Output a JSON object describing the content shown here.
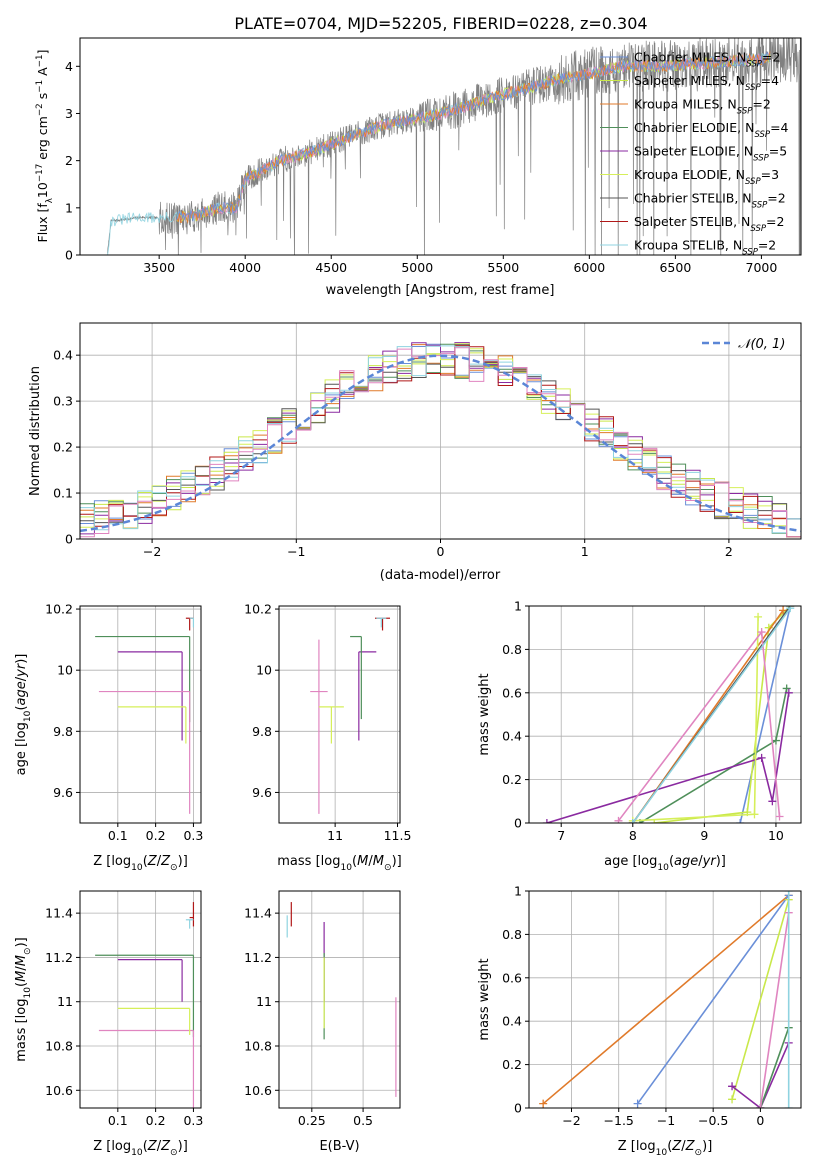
{
  "figure": {
    "title": "PLATE=0704, MJD=52205, FIBERID=0228, z=0.304"
  },
  "colors": {
    "chabrier_miles": "#6a8fd8",
    "salpeter_miles": "#c9e84a",
    "kroupa_miles": "#e07a2a",
    "chabrier_elodie": "#4f8f5a",
    "salpeter_elodie": "#8a2aa0",
    "kroupa_elodie": "#d6ef5a",
    "chabrier_stelib": "#555555",
    "salpeter_stelib": "#b01818",
    "kroupa_stelib": "#8fd3e0",
    "pink": "#e085c0",
    "data_grey": "#808080",
    "normal_curve": "#5b86d6"
  },
  "chart_data": [
    {
      "id": "spectrum",
      "type": "line",
      "title": "PLATE=0704, MJD=52205, FIBERID=0228, z=0.304",
      "xlabel": "wavelength [Angstrom, rest frame]",
      "ylabel": "Flux [fλ 10⁻¹⁷ erg cm⁻² s⁻¹ A⁻¹]",
      "xlim": [
        3040,
        7230
      ],
      "ylim": [
        0,
        4.6
      ],
      "xticks": [
        3500,
        4000,
        4500,
        5000,
        5500,
        6000,
        6500,
        7000
      ],
      "yticks": [
        0,
        1,
        2,
        3,
        4
      ],
      "legend_position": "top-right",
      "legend": [
        {
          "label": "Chabrier MILES, N",
          "sub": "SSP",
          "suffix": "=2",
          "color_key": "chabrier_miles"
        },
        {
          "label": "Salpeter MILES, N",
          "sub": "SSP",
          "suffix": "=4",
          "color_key": "salpeter_miles"
        },
        {
          "label": "Kroupa MILES, N",
          "sub": "SSP",
          "suffix": "=2",
          "color_key": "kroupa_miles"
        },
        {
          "label": "Chabrier ELODIE, N",
          "sub": "SSP",
          "suffix": "=4",
          "color_key": "chabrier_elodie"
        },
        {
          "label": "Salpeter ELODIE, N",
          "sub": "SSP",
          "suffix": "=5",
          "color_key": "salpeter_elodie"
        },
        {
          "label": "Kroupa ELODIE, N",
          "sub": "SSP",
          "suffix": "=3",
          "color_key": "kroupa_elodie"
        },
        {
          "label": "Chabrier STELIB, N",
          "sub": "SSP",
          "suffix": "=2",
          "color_key": "chabrier_stelib"
        },
        {
          "label": "Salpeter STELIB, N",
          "sub": "SSP",
          "suffix": "=2",
          "color_key": "salpeter_stelib"
        },
        {
          "label": "Kroupa STELIB, N",
          "sub": "SSP",
          "suffix": "=2",
          "color_key": "kroupa_stelib"
        }
      ],
      "continuum": [
        [
          3200,
          0.05
        ],
        [
          3220,
          0.72
        ],
        [
          3400,
          0.8
        ],
        [
          3500,
          0.78
        ],
        [
          3700,
          0.82
        ],
        [
          3850,
          1.0
        ],
        [
          3950,
          1.0
        ],
        [
          4000,
          1.6
        ],
        [
          4200,
          2.0
        ],
        [
          4400,
          2.2
        ],
        [
          4600,
          2.5
        ],
        [
          4800,
          2.75
        ],
        [
          5000,
          2.9
        ],
        [
          5200,
          3.05
        ],
        [
          5400,
          3.3
        ],
        [
          5600,
          3.5
        ],
        [
          5800,
          3.7
        ],
        [
          6000,
          3.85
        ],
        [
          6200,
          4.0
        ],
        [
          6400,
          4.0
        ],
        [
          6600,
          4.05
        ],
        [
          6800,
          4.1
        ],
        [
          7000,
          4.15
        ],
        [
          7050,
          4.2
        ]
      ]
    },
    {
      "id": "residuals",
      "type": "step",
      "xlabel": "(data-model)/error",
      "ylabel": "Normed distribution",
      "xlim": [
        -2.5,
        2.5
      ],
      "ylim": [
        0,
        0.47
      ],
      "xticks": [
        -2,
        -1,
        0,
        1,
        2
      ],
      "yticks": [
        0.0,
        0.1,
        0.2,
        0.3,
        0.4
      ],
      "legend_position": "top-right",
      "legend": [
        {
          "label": "𝒩(0, 1)",
          "color_key": "normal_curve"
        }
      ],
      "bin_width": 0.1
    },
    {
      "id": "age_vs_Z",
      "type": "errorbar",
      "xlabel": "Z [log10(Z/Z⊙)]",
      "ylabel": "age  [log10(age/yr)]",
      "xlim": [
        0.0,
        0.32
      ],
      "ylim": [
        9.5,
        10.21
      ],
      "xticks": [
        0.1,
        0.2,
        0.3
      ],
      "yticks": [
        9.6,
        9.8,
        10.0,
        10.2
      ],
      "points": [
        {
          "x": 0.27,
          "y": 10.06,
          "xerr": [
            0.17,
            0.0
          ],
          "yerr": [
            0.29,
            0.0
          ],
          "color_key": "salpeter_elodie"
        },
        {
          "x": 0.29,
          "y": 10.11,
          "xerr": [
            0.25,
            0.0
          ],
          "yerr": [
            0.28,
            0.0
          ],
          "color_key": "chabrier_elodie"
        },
        {
          "x": 0.29,
          "y": 9.93,
          "xerr": [
            0.24,
            0.0
          ],
          "yerr": [
            0.4,
            0.0
          ],
          "color_key": "pink"
        },
        {
          "x": 0.28,
          "y": 9.88,
          "xerr": [
            0.18,
            0.0
          ],
          "yerr": [
            0.12,
            0.0
          ],
          "color_key": "kroupa_elodie"
        },
        {
          "x": 0.29,
          "y": 10.17,
          "xerr": [
            0.01,
            0.01
          ],
          "yerr": [
            0.04,
            0.0
          ],
          "color_key": "salpeter_stelib"
        },
        {
          "x": 0.3,
          "y": 10.17,
          "xerr": [
            0.01,
            0.0
          ],
          "yerr": [
            0.03,
            0.0
          ],
          "color_key": "kroupa_stelib"
        }
      ]
    },
    {
      "id": "age_vs_mass",
      "type": "errorbar",
      "xlabel": "mass [log10(M/M⊙)]",
      "ylabel": "",
      "xlim": [
        10.55,
        11.52
      ],
      "ylim": [
        9.5,
        10.21
      ],
      "xticks": [
        11.0,
        11.5
      ],
      "yticks": [
        9.6,
        9.8,
        10.0,
        10.2
      ],
      "points": [
        {
          "x": 11.19,
          "y": 10.06,
          "xerr": [
            0.0,
            0.14
          ],
          "yerr": [
            0.29,
            0.0
          ],
          "color_key": "salpeter_elodie"
        },
        {
          "x": 11.21,
          "y": 10.11,
          "xerr": [
            0.09,
            0.0
          ],
          "yerr": [
            0.27,
            0.0
          ],
          "color_key": "chabrier_elodie"
        },
        {
          "x": 10.87,
          "y": 9.93,
          "xerr": [
            0.07,
            0.07
          ],
          "yerr": [
            0.4,
            0.17
          ],
          "color_key": "pink"
        },
        {
          "x": 10.97,
          "y": 9.88,
          "xerr": [
            0.1,
            0.1
          ],
          "yerr": [
            0.12,
            0.0
          ],
          "color_key": "kroupa_elodie"
        },
        {
          "x": 11.38,
          "y": 10.17,
          "xerr": [
            0.06,
            0.06
          ],
          "yerr": [
            0.04,
            0.0
          ],
          "color_key": "salpeter_stelib"
        },
        {
          "x": 11.37,
          "y": 10.17,
          "xerr": [
            0.04,
            0.04
          ],
          "yerr": [
            0.03,
            0.0
          ],
          "color_key": "kroupa_stelib"
        }
      ]
    },
    {
      "id": "weight_vs_age",
      "type": "line",
      "xlabel": "age  [log10(age/yr)]",
      "ylabel": "mass weight",
      "xlim": [
        6.55,
        10.35
      ],
      "ylim": [
        0,
        1
      ],
      "xticks": [
        7,
        8,
        9,
        10
      ],
      "yticks": [
        0.0,
        0.2,
        0.4,
        0.6,
        0.8,
        1.0
      ],
      "series": [
        {
          "color_key": "chabrier_miles",
          "points": [
            [
              9.5,
              0.0
            ],
            [
              10.2,
              1.0
            ]
          ]
        },
        {
          "color_key": "salpeter_miles",
          "points": [
            [
              8.3,
              0.0
            ],
            [
              9.6,
              0.05
            ],
            [
              9.9,
              0.9
            ],
            [
              10.2,
              1.0
            ]
          ]
        },
        {
          "color_key": "kroupa_miles",
          "points": [
            [
              8.0,
              0.0
            ],
            [
              10.1,
              0.98
            ]
          ]
        },
        {
          "color_key": "chabrier_elodie",
          "points": [
            [
              8.1,
              0.0
            ],
            [
              10.0,
              0.38
            ],
            [
              10.15,
              0.62
            ]
          ]
        },
        {
          "color_key": "salpeter_elodie",
          "points": [
            [
              6.8,
              0.0
            ],
            [
              9.8,
              0.3
            ],
            [
              9.95,
              0.1
            ],
            [
              10.18,
              0.6
            ]
          ]
        },
        {
          "color_key": "kroupa_elodie",
          "points": [
            [
              8.0,
              0.01
            ],
            [
              9.7,
              0.04
            ],
            [
              9.75,
              0.95
            ]
          ]
        },
        {
          "color_key": "chabrier_stelib",
          "points": [
            [
              8.0,
              0.0
            ],
            [
              10.2,
              1.0
            ]
          ]
        },
        {
          "color_key": "pink",
          "points": [
            [
              7.8,
              0.01
            ],
            [
              9.8,
              0.88
            ],
            [
              10.05,
              0.03
            ]
          ]
        },
        {
          "color_key": "kroupa_stelib",
          "points": [
            [
              8.0,
              0.0
            ],
            [
              10.2,
              0.99
            ]
          ]
        }
      ]
    },
    {
      "id": "mass_vs_Z",
      "type": "errorbar",
      "xlabel": "Z [log10(Z/Z⊙)]",
      "ylabel": "mass [log10(M/M⊙)]",
      "xlim": [
        0.0,
        0.32
      ],
      "ylim": [
        10.52,
        11.5
      ],
      "xticks": [
        0.1,
        0.2,
        0.3
      ],
      "yticks": [
        10.6,
        10.8,
        11.0,
        11.2,
        11.4
      ],
      "points": [
        {
          "x": 0.27,
          "y": 11.19,
          "xerr": [
            0.17,
            0.0
          ],
          "yerr": [
            0.19,
            0.0
          ],
          "color_key": "salpeter_elodie"
        },
        {
          "x": 0.3,
          "y": 11.21,
          "xerr": [
            0.26,
            0.0
          ],
          "yerr": [
            0.37,
            0.0
          ],
          "color_key": "chabrier_elodie"
        },
        {
          "x": 0.3,
          "y": 10.87,
          "xerr": [
            0.25,
            0.0
          ],
          "yerr": [
            0.35,
            0.0
          ],
          "color_key": "pink"
        },
        {
          "x": 0.29,
          "y": 10.97,
          "xerr": [
            0.19,
            0.0
          ],
          "yerr": [
            0.12,
            0.0
          ],
          "color_key": "kroupa_elodie"
        },
        {
          "x": 0.3,
          "y": 11.38,
          "xerr": [
            0.01,
            0.0
          ],
          "yerr": [
            0.04,
            0.07
          ],
          "color_key": "salpeter_stelib"
        },
        {
          "x": 0.29,
          "y": 11.37,
          "xerr": [
            0.01,
            0.01
          ],
          "yerr": [
            0.04,
            0.0
          ],
          "color_key": "kroupa_stelib"
        }
      ]
    },
    {
      "id": "mass_vs_ebv",
      "type": "errorbar",
      "xlabel": "E(B-V)",
      "ylabel": "",
      "xlim": [
        0.09,
        0.68
      ],
      "ylim": [
        10.52,
        11.5
      ],
      "xticks": [
        0.25,
        0.5
      ],
      "yticks": [
        10.6,
        10.8,
        11.0,
        11.2,
        11.4
      ],
      "points": [
        {
          "x": 0.31,
          "y": 11.19,
          "xerr": [
            0.0,
            0.0
          ],
          "yerr": [
            0.19,
            0.17
          ],
          "color_key": "salpeter_elodie"
        },
        {
          "x": 0.31,
          "y": 11.0,
          "xerr": [
            0.0,
            0.0
          ],
          "yerr": [
            0.17,
            0.22
          ],
          "color_key": "chabrier_elodie"
        },
        {
          "x": 0.31,
          "y": 11.0,
          "xerr": [
            0.0,
            0.0
          ],
          "yerr": [
            0.12,
            0.2
          ],
          "color_key": "kroupa_elodie"
        },
        {
          "x": 0.66,
          "y": 10.87,
          "xerr": [
            0.0,
            0.0
          ],
          "yerr": [
            0.3,
            0.15
          ],
          "color_key": "pink"
        },
        {
          "x": 0.15,
          "y": 11.38,
          "xerr": [
            0.0,
            0.0
          ],
          "yerr": [
            0.04,
            0.07
          ],
          "color_key": "salpeter_stelib"
        },
        {
          "x": 0.13,
          "y": 11.35,
          "xerr": [
            0.0,
            0.0
          ],
          "yerr": [
            0.06,
            0.04
          ],
          "color_key": "kroupa_stelib"
        }
      ]
    },
    {
      "id": "weight_vs_Z",
      "type": "line",
      "xlabel": "Z [log10(Z/Z⊙)]",
      "ylabel": "mass weight",
      "xlim": [
        -2.45,
        0.43
      ],
      "ylim": [
        0,
        1
      ],
      "xticks": [
        -2.0,
        -1.5,
        -1.0,
        -0.5,
        0.0
      ],
      "yticks": [
        0.0,
        0.2,
        0.4,
        0.6,
        0.8,
        1.0
      ],
      "series": [
        {
          "color_key": "kroupa_miles",
          "points": [
            [
              -2.3,
              0.02
            ],
            [
              0.3,
              0.98
            ]
          ]
        },
        {
          "color_key": "chabrier_miles",
          "points": [
            [
              -1.3,
              0.02
            ],
            [
              0.3,
              0.98
            ]
          ]
        },
        {
          "color_key": "salpeter_miles",
          "points": [
            [
              -0.3,
              0.04
            ],
            [
              0.3,
              0.96
            ]
          ]
        },
        {
          "color_key": "salpeter_elodie",
          "points": [
            [
              -0.3,
              0.1
            ],
            [
              0.0,
              0.0
            ],
            [
              0.3,
              0.3
            ]
          ]
        },
        {
          "color_key": "chabrier_elodie",
          "points": [
            [
              0.0,
              0.0
            ],
            [
              0.3,
              0.37
            ]
          ]
        },
        {
          "color_key": "pink",
          "points": [
            [
              0.0,
              0.0
            ],
            [
              0.3,
              0.9
            ]
          ]
        },
        {
          "color_key": "kroupa_stelib",
          "points": [
            [
              0.3,
              0.0
            ],
            [
              0.3,
              1.0
            ]
          ]
        }
      ]
    }
  ]
}
